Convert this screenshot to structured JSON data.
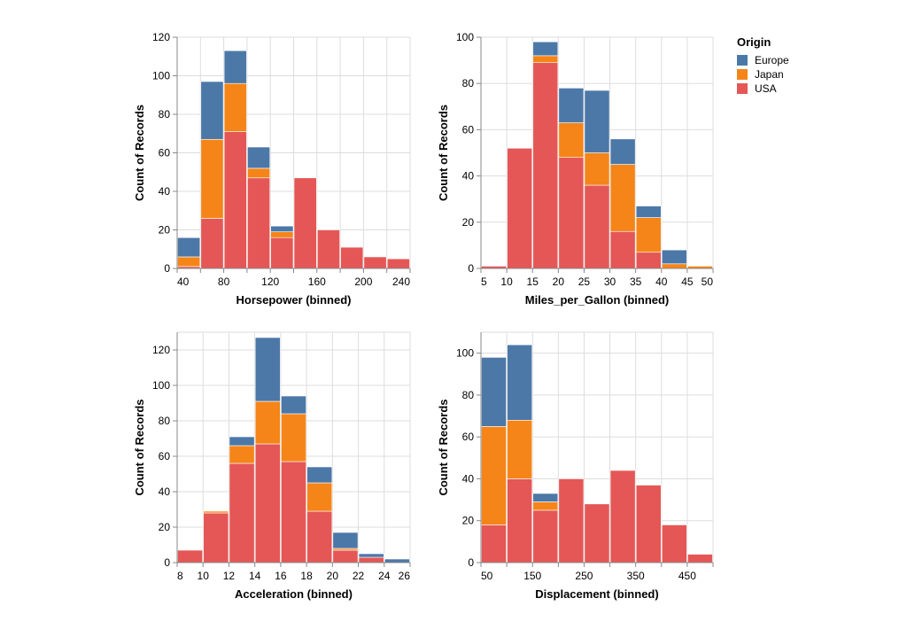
{
  "legend": {
    "title": "Origin",
    "items": [
      {
        "name": "Europe",
        "color": "#4c78a8"
      },
      {
        "name": "Japan",
        "color": "#f58518"
      },
      {
        "name": "USA",
        "color": "#e45756"
      }
    ]
  },
  "chart_data": [
    {
      "type": "bar",
      "stacked": true,
      "grid": true,
      "xlabel": "Horsepower (binned)",
      "ylabel": "Count of Records",
      "xlim": [
        40,
        240
      ],
      "ylim": [
        0,
        120
      ],
      "x_ticks": [
        40,
        60,
        80,
        100,
        120,
        140,
        160,
        180,
        200,
        220,
        240
      ],
      "x_tick_labels": [
        "40",
        "80",
        "120",
        "160",
        "200",
        "240"
      ],
      "y_ticks": [
        0,
        20,
        40,
        60,
        80,
        100,
        120
      ],
      "bins": [
        [
          40,
          60
        ],
        [
          60,
          80
        ],
        [
          80,
          100
        ],
        [
          100,
          120
        ],
        [
          120,
          140
        ],
        [
          140,
          160
        ],
        [
          160,
          180
        ],
        [
          180,
          200
        ],
        [
          200,
          220
        ],
        [
          220,
          240
        ]
      ],
      "series": [
        {
          "name": "USA",
          "values": [
            1,
            26,
            71,
            47,
            16,
            47,
            20,
            11,
            6,
            5
          ]
        },
        {
          "name": "Japan",
          "values": [
            5,
            41,
            25,
            5,
            3,
            0,
            0,
            0,
            0,
            0
          ]
        },
        {
          "name": "Europe",
          "values": [
            10,
            30,
            17,
            11,
            3,
            0,
            0,
            0,
            0,
            0
          ]
        }
      ]
    },
    {
      "type": "bar",
      "stacked": true,
      "grid": true,
      "xlabel": "Miles_per_Gallon (binned)",
      "ylabel": "Count of Records",
      "xlim": [
        5,
        50
      ],
      "ylim": [
        0,
        100
      ],
      "x_ticks": [
        5,
        10,
        15,
        20,
        25,
        30,
        35,
        40,
        45,
        50
      ],
      "x_tick_labels": [
        "5",
        "10",
        "15",
        "20",
        "25",
        "30",
        "35",
        "40",
        "45",
        "50"
      ],
      "y_ticks": [
        0,
        20,
        40,
        60,
        80,
        100
      ],
      "bins": [
        [
          5,
          10
        ],
        [
          10,
          15
        ],
        [
          15,
          20
        ],
        [
          20,
          25
        ],
        [
          25,
          30
        ],
        [
          30,
          35
        ],
        [
          35,
          40
        ],
        [
          40,
          45
        ],
        [
          45,
          50
        ]
      ],
      "series": [
        {
          "name": "USA",
          "values": [
            1,
            52,
            89,
            48,
            36,
            16,
            7,
            0,
            0
          ]
        },
        {
          "name": "Japan",
          "values": [
            0,
            0,
            3,
            15,
            14,
            29,
            15,
            2,
            1
          ]
        },
        {
          "name": "Europe",
          "values": [
            0,
            0,
            6,
            15,
            27,
            11,
            5,
            6,
            0
          ]
        }
      ]
    },
    {
      "type": "bar",
      "stacked": true,
      "grid": true,
      "xlabel": "Acceleration (binned)",
      "ylabel": "Count of Records",
      "xlim": [
        8,
        26
      ],
      "ylim": [
        0,
        130
      ],
      "x_ticks": [
        8,
        10,
        12,
        14,
        16,
        18,
        20,
        22,
        24,
        26
      ],
      "x_tick_labels": [
        "8",
        "10",
        "12",
        "14",
        "16",
        "18",
        "20",
        "22",
        "24",
        "26"
      ],
      "y_ticks": [
        0,
        20,
        40,
        60,
        80,
        100,
        120
      ],
      "bins": [
        [
          8,
          10
        ],
        [
          10,
          12
        ],
        [
          12,
          14
        ],
        [
          14,
          16
        ],
        [
          16,
          18
        ],
        [
          18,
          20
        ],
        [
          20,
          22
        ],
        [
          22,
          24
        ],
        [
          24,
          26
        ]
      ],
      "series": [
        {
          "name": "USA",
          "values": [
            7,
            28,
            56,
            67,
            57,
            29,
            7,
            3,
            0
          ]
        },
        {
          "name": "Japan",
          "values": [
            0,
            1,
            10,
            24,
            27,
            16,
            1,
            0,
            0
          ]
        },
        {
          "name": "Europe",
          "values": [
            0,
            0,
            5,
            36,
            10,
            9,
            9,
            2,
            2
          ]
        }
      ]
    },
    {
      "type": "bar",
      "stacked": true,
      "grid": true,
      "xlabel": "Displacement (binned)",
      "ylabel": "Count of Records",
      "xlim": [
        50,
        500
      ],
      "ylim": [
        0,
        110
      ],
      "x_ticks": [
        50,
        100,
        150,
        200,
        250,
        300,
        350,
        400,
        450,
        500
      ],
      "x_tick_labels": [
        "50",
        "150",
        "250",
        "350",
        "450"
      ],
      "y_ticks": [
        0,
        20,
        40,
        60,
        80,
        100
      ],
      "bins": [
        [
          50,
          100
        ],
        [
          100,
          150
        ],
        [
          150,
          200
        ],
        [
          200,
          250
        ],
        [
          250,
          300
        ],
        [
          300,
          350
        ],
        [
          350,
          400
        ],
        [
          400,
          450
        ],
        [
          450,
          500
        ]
      ],
      "series": [
        {
          "name": "USA",
          "values": [
            18,
            40,
            25,
            40,
            28,
            44,
            37,
            18,
            4
          ]
        },
        {
          "name": "Japan",
          "values": [
            47,
            28,
            4,
            0,
            0,
            0,
            0,
            0,
            0
          ]
        },
        {
          "name": "Europe",
          "values": [
            33,
            36,
            4,
            0,
            0,
            0,
            0,
            0,
            0
          ]
        }
      ]
    }
  ]
}
